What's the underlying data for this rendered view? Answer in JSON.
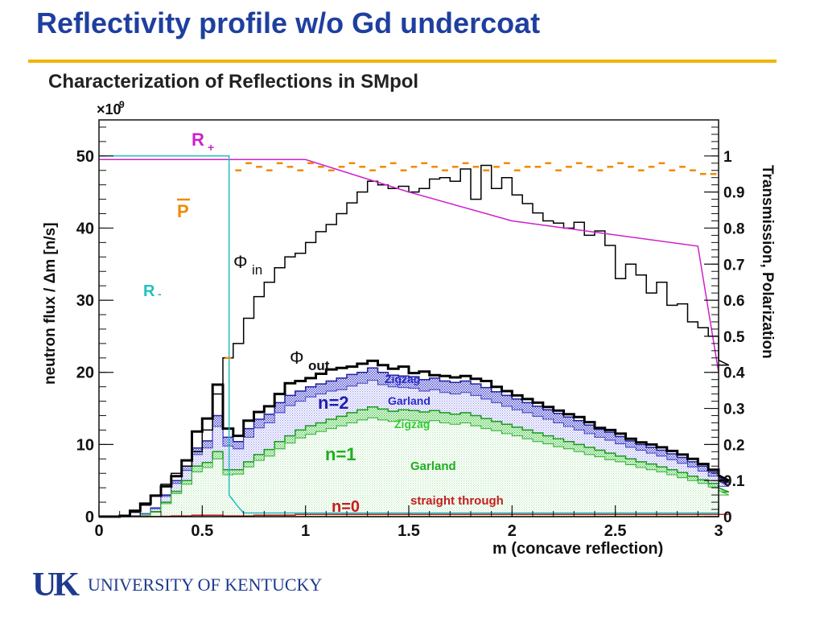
{
  "slide": {
    "title": "Reflectivity profile w/o Gd undercoat",
    "logo_mark": "UK",
    "logo_name": "UNIVERSITY OF KENTUCKY"
  },
  "colors": {
    "slide_title": "#1f3f9f",
    "rule": "#f0b400",
    "phi_in": "#000000",
    "phi_out": "#000000",
    "zigzag_n2": "#3a3ad0",
    "garland_n2": "#5656e0",
    "zigzag_n1": "#33c233",
    "garland_n1": "#b8ecb8",
    "straight": "#c41e1e",
    "r_plus": "#cc22cc",
    "r_minus": "#22c0c0",
    "pol": "#f08a00"
  },
  "chart_data": {
    "type": "line",
    "title": "Characterization of Reflections in SMpol",
    "xlabel": "m (concave reflection)",
    "ylabel": "neutron flux / Δm [n/s]",
    "y2label": "Transmission, Polarization",
    "y_exponent": "×10",
    "y_exponent_power": "9",
    "xlim": [
      0,
      3
    ],
    "ylim": [
      0,
      55
    ],
    "y2lim": [
      0,
      1.1
    ],
    "x_ticks": [
      "0",
      "0.5",
      "1",
      "1.5",
      "2",
      "2.5",
      "3"
    ],
    "y_ticks": [
      "0",
      "10",
      "20",
      "30",
      "40",
      "50"
    ],
    "y2_ticks": [
      "0",
      "0.1",
      "0.2",
      "0.3",
      "0.4",
      "0.5",
      "0.6",
      "0.7",
      "0.8",
      "0.9",
      "1"
    ],
    "annotations": {
      "r_plus": "R+",
      "r_minus": "R-",
      "p_bar": "P",
      "phi_symbol": "Φ",
      "phi_in_sub": "in",
      "phi_out_sub": "out",
      "n2": "n=2",
      "n1": "n=1",
      "n0": "n=0",
      "zigzag": "Zigzag",
      "garland": "Garland",
      "straight_through": "straight through"
    },
    "histogram_bin_width": 0.05,
    "series": [
      {
        "name": "phi_in",
        "axis": "left",
        "values": [
          0,
          0,
          0.2,
          0.6,
          1.6,
          3,
          4.5,
          6,
          7,
          9,
          12,
          17,
          22,
          24,
          27.5,
          30.5,
          32.5,
          34.5,
          36,
          36.5,
          38,
          39.5,
          40.5,
          42,
          43.5,
          45,
          46.5,
          46,
          45.5,
          45.8,
          45,
          45.5,
          46.8,
          47,
          46.5,
          48.2,
          44,
          48.7,
          45.5,
          47,
          44.6,
          43.4,
          42.1,
          41,
          40.7,
          40,
          40.8,
          39,
          39.6,
          37.6,
          33,
          35,
          33.5,
          31,
          32.5,
          29.3,
          29.5,
          27,
          26.2,
          25,
          21.7,
          21
        ]
      },
      {
        "name": "phi_out",
        "axis": "left",
        "values": [
          0,
          0,
          0.1,
          0.8,
          1.8,
          2.9,
          4.2,
          5.6,
          7.8,
          11.8,
          13.6,
          18.3,
          12.2,
          11.2,
          13.3,
          14.5,
          15.3,
          17,
          18.5,
          18.8,
          19.2,
          19.8,
          20.4,
          20.6,
          20.8,
          21.2,
          21.6,
          21,
          20.5,
          20.8,
          19.9,
          20.1,
          19.6,
          19.5,
          19.3,
          19.5,
          19.1,
          18.8,
          18,
          17.4,
          16.8,
          16.3,
          15.8,
          15.2,
          14.7,
          14.2,
          13.8,
          13.1,
          12.3,
          12,
          11.5,
          10.8,
          10.3,
          10,
          9.6,
          9.1,
          8.6,
          8,
          7.3,
          6.5,
          5.7,
          5
        ]
      },
      {
        "name": "n2_zigzag_top",
        "axis": "left",
        "values": [
          0,
          0,
          0,
          0.1,
          0.4,
          1.2,
          3,
          5,
          7,
          9.5,
          10.5,
          14,
          11,
          10.4,
          12.2,
          13.5,
          14.2,
          15.8,
          16.8,
          17.4,
          18,
          18.4,
          18.8,
          19.2,
          19.7,
          20,
          20.6,
          20,
          19.6,
          19.5,
          19.4,
          19,
          19.2,
          18.8,
          18.6,
          18.8,
          18.4,
          17.9,
          17.3,
          16.8,
          16.3,
          15.8,
          15.3,
          14.8,
          14.3,
          13.8,
          13.3,
          12.7,
          12.1,
          11.7,
          11.1,
          10.5,
          10,
          9.6,
          9.2,
          8.7,
          8.2,
          7.6,
          7,
          6.2,
          5.4,
          4.7
        ]
      },
      {
        "name": "n2_garland_top",
        "axis": "left",
        "values": [
          0,
          0,
          0,
          0.1,
          0.4,
          1.1,
          2.8,
          4.6,
          6.4,
          8.6,
          9.5,
          12.5,
          9.8,
          9.4,
          11,
          12.3,
          13,
          14.4,
          15.4,
          16,
          16.6,
          17,
          17.4,
          17.6,
          18.1,
          18.5,
          18.9,
          18.3,
          18,
          17.9,
          17.8,
          17.4,
          17.6,
          17.2,
          17,
          17.2,
          16.8,
          16.3,
          15.8,
          15.3,
          14.8,
          14.4,
          13.9,
          13.5,
          13,
          12.5,
          12,
          11.5,
          11,
          10.6,
          10.1,
          9.6,
          9.2,
          8.8,
          8.4,
          7.9,
          7.4,
          6.9,
          6.3,
          5.6,
          4.9,
          4.2
        ]
      },
      {
        "name": "n1_zigzag_top",
        "axis": "left",
        "values": [
          0,
          0,
          0,
          0,
          0.2,
          0.7,
          2,
          3.5,
          5,
          7,
          7.5,
          9,
          6.5,
          6.5,
          7.6,
          8.6,
          9.3,
          10.4,
          11.2,
          12,
          12.6,
          13,
          13.5,
          13.9,
          14.4,
          14.8,
          15.2,
          14.9,
          14.6,
          14.8,
          14.7,
          14.5,
          14.7,
          14.4,
          14.2,
          14.4,
          14,
          13.6,
          13.2,
          12.8,
          12.4,
          12,
          11.6,
          11.2,
          10.8,
          10.4,
          10,
          9.6,
          9.2,
          8.8,
          8.4,
          8,
          7.6,
          7.3,
          6.9,
          6.5,
          6.1,
          5.6,
          5.1,
          4.6,
          4,
          3.4
        ]
      },
      {
        "name": "n1_garland_top",
        "axis": "left",
        "values": [
          0,
          0,
          0,
          0,
          0.2,
          0.6,
          1.8,
          3.2,
          4.5,
          6.2,
          6.8,
          8,
          5.8,
          5.9,
          6.9,
          7.8,
          8.4,
          9.4,
          10.2,
          10.9,
          11.4,
          11.8,
          12.2,
          12.6,
          13,
          13.4,
          13.7,
          13.4,
          13.2,
          13.4,
          13.3,
          13.1,
          13.3,
          13,
          12.8,
          13,
          12.6,
          12.2,
          11.9,
          11.5,
          11.2,
          10.8,
          10.4,
          10.1,
          9.7,
          9.4,
          9,
          8.6,
          8.3,
          7.9,
          7.6,
          7.2,
          6.8,
          6.5,
          6.2,
          5.8,
          5.4,
          5,
          4.6,
          4.1,
          3.6,
          3
        ]
      },
      {
        "name": "straight_through",
        "axis": "left",
        "values": [
          0,
          0,
          0,
          0,
          0,
          0,
          0.05,
          0.1,
          0.1,
          0.2,
          0.2,
          0.2,
          0.1,
          0.1,
          0.1,
          0.2,
          0.2,
          0.2,
          0.2,
          0.3,
          0.3,
          0.3,
          0.3,
          0.3,
          0.3,
          0.3,
          0.3,
          0.3,
          0.3,
          0.3,
          0.3,
          0.3,
          0.3,
          0.3,
          0.3,
          0.3,
          0.3,
          0.3,
          0.3,
          0.3,
          0.3,
          0.3,
          0.3,
          0.3,
          0.3,
          0.3,
          0.3,
          0.3,
          0.3,
          0.3,
          0.3,
          0.3,
          0.3,
          0.3,
          0.3,
          0.3,
          0.3,
          0.3,
          0.3,
          0.3,
          0.3,
          0.3
        ]
      },
      {
        "name": "r_plus",
        "axis": "right",
        "x": [
          0,
          1.0,
          1.5,
          2.0,
          2.9,
          3.0
        ],
        "y": [
          0.99,
          0.99,
          0.9,
          0.82,
          0.75,
          0.4
        ]
      },
      {
        "name": "r_minus",
        "axis": "right",
        "x": [
          0,
          0.63,
          0.63,
          0.67,
          0.7,
          3.0
        ],
        "y": [
          1.0,
          1.0,
          0.06,
          0.03,
          0.01,
          0.01
        ]
      },
      {
        "name": "polarization",
        "axis": "right",
        "x": [
          0.6,
          0.65,
          0.7,
          0.75,
          0.8,
          0.85,
          0.9,
          0.95,
          1.0,
          1.05,
          1.1,
          1.15,
          1.2,
          1.25,
          1.3,
          1.35,
          1.4,
          1.45,
          1.5,
          1.55,
          1.6,
          1.65,
          1.7,
          1.75,
          1.8,
          1.85,
          1.9,
          1.95,
          2.0,
          2.05,
          2.1,
          2.15,
          2.2,
          2.25,
          2.3,
          2.35,
          2.4,
          2.45,
          2.5,
          2.55,
          2.6,
          2.65,
          2.7,
          2.75,
          2.8,
          2.85,
          2.9,
          2.95
        ],
        "y": [
          0.44,
          0.96,
          0.98,
          0.97,
          0.96,
          0.98,
          0.97,
          0.96,
          0.98,
          0.97,
          0.96,
          0.97,
          0.98,
          0.97,
          0.96,
          0.97,
          0.98,
          0.96,
          0.97,
          0.98,
          0.97,
          0.96,
          0.97,
          0.98,
          0.97,
          0.96,
          0.97,
          0.98,
          0.96,
          0.97,
          0.97,
          0.98,
          0.96,
          0.97,
          0.98,
          0.97,
          0.96,
          0.97,
          0.98,
          0.97,
          0.96,
          0.97,
          0.98,
          0.96,
          0.97,
          0.96,
          0.95,
          0.95
        ]
      }
    ]
  }
}
